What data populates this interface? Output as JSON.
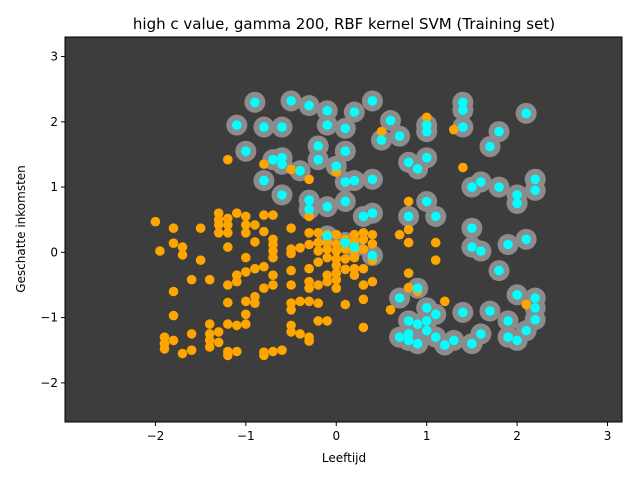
{
  "chart_data": {
    "type": "scatter",
    "title": "high c value, gamma 200, RBF kernel SVM (Training set)",
    "xlabel": "Leeftijd",
    "ylabel": "Geschatte inkomsten",
    "xlim": [
      -3.0,
      3.16
    ],
    "ylim": [
      -2.6,
      3.3
    ],
    "xticks": [
      -2,
      -1,
      0,
      1,
      2,
      3
    ],
    "yticks": [
      -2,
      -1,
      0,
      1,
      2,
      3
    ],
    "background_color": "#3d3d3d",
    "region_color": "#8c8c8c",
    "series": [
      {
        "color": "#ffa500",
        "points": [
          [
            -2.0,
            0.47
          ],
          [
            -1.95,
            0.02
          ],
          [
            -1.9,
            -1.3
          ],
          [
            -1.9,
            -1.4
          ],
          [
            -1.9,
            -1.48
          ],
          [
            -1.8,
            0.37
          ],
          [
            -1.8,
            0.14
          ],
          [
            -1.8,
            -0.6
          ],
          [
            -1.8,
            -0.97
          ],
          [
            -1.8,
            -1.35
          ],
          [
            -1.7,
            0.08
          ],
          [
            -1.7,
            -0.04
          ],
          [
            -1.7,
            -1.55
          ],
          [
            -1.6,
            -0.42
          ],
          [
            -1.6,
            -1.25
          ],
          [
            -1.6,
            -1.5
          ],
          [
            -1.5,
            0.37
          ],
          [
            -1.5,
            -0.12
          ],
          [
            -1.4,
            -0.42
          ],
          [
            -1.4,
            -1.1
          ],
          [
            -1.4,
            -1.25
          ],
          [
            -1.4,
            -1.35
          ],
          [
            -1.4,
            -1.45
          ],
          [
            -1.3,
            0.6
          ],
          [
            -1.3,
            0.5
          ],
          [
            -1.3,
            0.42
          ],
          [
            -1.3,
            0.3
          ],
          [
            -1.3,
            -1.22
          ],
          [
            -1.3,
            -1.38
          ],
          [
            -1.2,
            1.42
          ],
          [
            -1.2,
            0.52
          ],
          [
            -1.2,
            0.42
          ],
          [
            -1.2,
            0.3
          ],
          [
            -1.2,
            0.08
          ],
          [
            -1.2,
            -0.5
          ],
          [
            -1.2,
            -0.77
          ],
          [
            -1.2,
            -1.1
          ],
          [
            -1.2,
            -1.52
          ],
          [
            -1.2,
            -1.58
          ],
          [
            -1.1,
            0.6
          ],
          [
            -1.1,
            -0.35
          ],
          [
            -1.1,
            -0.45
          ],
          [
            -1.1,
            -1.12
          ],
          [
            -1.1,
            -1.52
          ],
          [
            -1.0,
            0.55
          ],
          [
            -1.0,
            0.42
          ],
          [
            -1.0,
            0.3
          ],
          [
            -1.0,
            -0.08
          ],
          [
            -1.0,
            -0.3
          ],
          [
            -1.0,
            -0.75
          ],
          [
            -1.0,
            -0.95
          ],
          [
            -1.0,
            -1.1
          ],
          [
            -0.9,
            0.42
          ],
          [
            -0.9,
            0.16
          ],
          [
            -0.9,
            -0.25
          ],
          [
            -0.9,
            -0.68
          ],
          [
            -0.9,
            -0.78
          ],
          [
            -0.8,
            1.35
          ],
          [
            -0.8,
            0.57
          ],
          [
            -0.8,
            0.32
          ],
          [
            -0.8,
            -0.22
          ],
          [
            -0.8,
            -0.55
          ],
          [
            -0.8,
            -1.53
          ],
          [
            -0.8,
            -1.58
          ],
          [
            -0.7,
            0.57
          ],
          [
            -0.7,
            0.2
          ],
          [
            -0.7,
            0.12
          ],
          [
            -0.7,
            0.02
          ],
          [
            -0.7,
            -0.08
          ],
          [
            -0.7,
            -0.35
          ],
          [
            -0.7,
            -0.5
          ],
          [
            -0.7,
            -1.52
          ],
          [
            -0.6,
            -1.5
          ],
          [
            -0.5,
            1.27
          ],
          [
            -0.5,
            0.37
          ],
          [
            -0.5,
            0.05
          ],
          [
            -0.5,
            -0.02
          ],
          [
            -0.5,
            -0.28
          ],
          [
            -0.5,
            -0.5
          ],
          [
            -0.5,
            -0.78
          ],
          [
            -0.5,
            -0.88
          ],
          [
            -0.5,
            -1.12
          ],
          [
            -0.5,
            -1.22
          ],
          [
            -0.4,
            0.07
          ],
          [
            -0.4,
            -0.75
          ],
          [
            -0.4,
            -1.25
          ],
          [
            -0.3,
            1.12
          ],
          [
            -0.3,
            0.55
          ],
          [
            -0.3,
            0.3
          ],
          [
            -0.3,
            0.12
          ],
          [
            -0.3,
            -0.25
          ],
          [
            -0.3,
            -0.45
          ],
          [
            -0.3,
            -0.55
          ],
          [
            -0.3,
            -0.75
          ],
          [
            -0.3,
            -1.3
          ],
          [
            -0.3,
            -1.36
          ],
          [
            -0.2,
            0.3
          ],
          [
            -0.2,
            0.15
          ],
          [
            -0.2,
            0.02
          ],
          [
            -0.2,
            -0.15
          ],
          [
            -0.2,
            -0.5
          ],
          [
            -0.2,
            -0.78
          ],
          [
            -0.2,
            -1.05
          ],
          [
            -0.1,
            0.27
          ],
          [
            -0.1,
            0.16
          ],
          [
            -0.1,
            0.05
          ],
          [
            -0.1,
            -0.08
          ],
          [
            -0.1,
            -0.35
          ],
          [
            -0.1,
            -0.45
          ],
          [
            -0.1,
            -1.05
          ],
          [
            0.0,
            1.23
          ],
          [
            0.0,
            0.27
          ],
          [
            0.0,
            0.12
          ],
          [
            0.0,
            0.02
          ],
          [
            0.0,
            -0.1
          ],
          [
            0.0,
            -0.2
          ],
          [
            0.0,
            -0.32
          ],
          [
            0.0,
            -0.42
          ],
          [
            0.0,
            -0.55
          ],
          [
            0.1,
            0.2
          ],
          [
            0.1,
            0.05
          ],
          [
            0.1,
            -0.1
          ],
          [
            0.1,
            -0.26
          ],
          [
            0.1,
            -0.8
          ],
          [
            0.2,
            0.27
          ],
          [
            0.2,
            0.16
          ],
          [
            0.2,
            0.02
          ],
          [
            0.2,
            -0.08
          ],
          [
            0.2,
            -0.25
          ],
          [
            0.2,
            -0.35
          ],
          [
            0.3,
            0.3
          ],
          [
            0.3,
            0.2
          ],
          [
            0.3,
            0.05
          ],
          [
            0.3,
            -0.25
          ],
          [
            0.3,
            -0.5
          ],
          [
            0.3,
            -0.72
          ],
          [
            0.3,
            -1.15
          ],
          [
            0.4,
            0.27
          ],
          [
            0.4,
            0.13
          ],
          [
            0.4,
            -0.12
          ],
          [
            0.4,
            -0.45
          ],
          [
            0.5,
            1.85
          ],
          [
            0.6,
            -0.88
          ],
          [
            0.7,
            0.27
          ],
          [
            0.8,
            0.78
          ],
          [
            0.8,
            0.35
          ],
          [
            0.8,
            0.15
          ],
          [
            0.8,
            -0.32
          ],
          [
            0.8,
            -0.54
          ],
          [
            0.9,
            -0.6
          ],
          [
            1.0,
            2.07
          ],
          [
            1.1,
            0.15
          ],
          [
            1.1,
            -0.12
          ],
          [
            1.2,
            -0.75
          ],
          [
            1.3,
            1.88
          ],
          [
            1.4,
            1.3
          ],
          [
            2.1,
            -0.8
          ]
        ]
      },
      {
        "color": "#00ffff",
        "points": [
          [
            -1.1,
            1.95
          ],
          [
            -1.0,
            1.55
          ],
          [
            -0.9,
            2.3
          ],
          [
            -0.8,
            1.92
          ],
          [
            -0.8,
            1.1
          ],
          [
            -0.7,
            1.42
          ],
          [
            -0.6,
            1.92
          ],
          [
            -0.6,
            1.45
          ],
          [
            -0.6,
            1.35
          ],
          [
            -0.6,
            0.88
          ],
          [
            -0.5,
            2.32
          ],
          [
            -0.4,
            1.25
          ],
          [
            -0.3,
            2.25
          ],
          [
            -0.3,
            0.8
          ],
          [
            -0.3,
            0.66
          ],
          [
            -0.2,
            1.63
          ],
          [
            -0.2,
            1.42
          ],
          [
            -0.1,
            2.17
          ],
          [
            -0.1,
            1.95
          ],
          [
            -0.1,
            0.7
          ],
          [
            -0.1,
            0.25
          ],
          [
            0.0,
            1.32
          ],
          [
            0.1,
            1.9
          ],
          [
            0.1,
            1.55
          ],
          [
            0.1,
            1.08
          ],
          [
            0.1,
            0.78
          ],
          [
            0.1,
            0.15
          ],
          [
            0.2,
            2.15
          ],
          [
            0.2,
            1.1
          ],
          [
            0.2,
            0.08
          ],
          [
            0.3,
            0.55
          ],
          [
            0.4,
            2.32
          ],
          [
            0.4,
            1.12
          ],
          [
            0.4,
            0.6
          ],
          [
            0.5,
            1.72
          ],
          [
            0.6,
            2.02
          ],
          [
            0.7,
            1.78
          ],
          [
            0.7,
            -0.7
          ],
          [
            0.7,
            -1.3
          ],
          [
            0.8,
            1.38
          ],
          [
            0.8,
            0.55
          ],
          [
            0.8,
            -1.05
          ],
          [
            0.8,
            -1.25
          ],
          [
            0.8,
            -1.35
          ],
          [
            0.9,
            1.28
          ],
          [
            0.9,
            -0.55
          ],
          [
            0.9,
            -1.1
          ],
          [
            0.9,
            -1.4
          ],
          [
            1.0,
            1.95
          ],
          [
            1.0,
            1.85
          ],
          [
            1.0,
            1.45
          ],
          [
            1.0,
            0.78
          ],
          [
            1.0,
            -0.85
          ],
          [
            1.0,
            -1.05
          ],
          [
            1.0,
            -1.2
          ],
          [
            1.1,
            0.55
          ],
          [
            1.1,
            -0.95
          ],
          [
            1.1,
            -1.3
          ],
          [
            1.2,
            -1.42
          ],
          [
            1.3,
            -1.35
          ],
          [
            1.4,
            2.3
          ],
          [
            1.4,
            2.18
          ],
          [
            1.4,
            1.92
          ],
          [
            1.4,
            -0.92
          ],
          [
            1.5,
            1.0
          ],
          [
            1.5,
            0.37
          ],
          [
            1.5,
            0.08
          ],
          [
            1.5,
            -1.4
          ],
          [
            1.6,
            1.08
          ],
          [
            1.6,
            0.02
          ],
          [
            1.6,
            -1.25
          ],
          [
            1.7,
            1.62
          ],
          [
            1.7,
            -0.9
          ],
          [
            1.8,
            1.85
          ],
          [
            1.8,
            1.0
          ],
          [
            1.8,
            -0.28
          ],
          [
            1.9,
            0.12
          ],
          [
            1.9,
            -1.05
          ],
          [
            1.9,
            -1.3
          ],
          [
            2.0,
            0.88
          ],
          [
            2.0,
            0.75
          ],
          [
            2.0,
            -0.65
          ],
          [
            2.0,
            -1.35
          ],
          [
            2.1,
            2.13
          ],
          [
            2.1,
            0.2
          ],
          [
            2.1,
            -1.2
          ],
          [
            2.2,
            1.12
          ],
          [
            2.2,
            0.95
          ],
          [
            2.2,
            -0.7
          ],
          [
            2.2,
            -0.85
          ],
          [
            2.2,
            -1.03
          ],
          [
            0.4,
            -0.05
          ]
        ]
      }
    ]
  }
}
